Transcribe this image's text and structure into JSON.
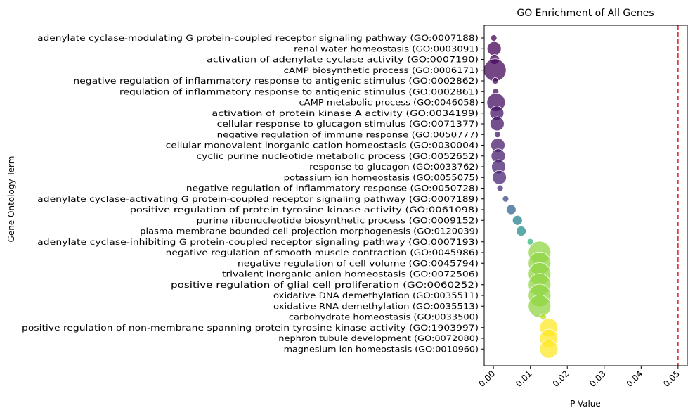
{
  "chart_data": {
    "type": "scatter",
    "title": "GO Enrichment of All Genes",
    "xlabel": "P-Value",
    "ylabel": "Gene Ontology Term",
    "xlim": [
      -0.0025,
      0.0525
    ],
    "xticks": [
      "0.00",
      "0.01",
      "0.02",
      "0.03",
      "0.04",
      "0.05"
    ],
    "xtick_values": [
      0,
      0.01,
      0.02,
      0.03,
      0.04,
      0.05
    ],
    "threshold": 0.05,
    "threshold_color": "#e41a1c",
    "colormap": "viridis",
    "grid": false,
    "points": [
      {
        "term": "adenylate cyclase-modulating G protein-coupled receptor signaling pathway (GO:0007188)",
        "p": 0.0001,
        "size": 1
      },
      {
        "term": "renal water homeostasis (GO:0003091)",
        "p": 0.0002,
        "size": 3
      },
      {
        "term": "activation of adenylate cyclase activity (GO:0007190)",
        "p": 0.0003,
        "size": 2
      },
      {
        "term": "cAMP biosynthetic process (GO:0006171)",
        "p": 0.0004,
        "size": 5
      },
      {
        "term": "negative regulation of inflammatory response to antigenic stimulus (GO:0002862)",
        "p": 0.0005,
        "size": 1
      },
      {
        "term": "regulation of inflammatory response to antigenic stimulus (GO:0002861)",
        "p": 0.0006,
        "size": 1
      },
      {
        "term": "cAMP metabolic process (GO:0046058)",
        "p": 0.0007,
        "size": 4
      },
      {
        "term": "activation of protein kinase A activity (GO:0034199)",
        "p": 0.0009,
        "size": 3
      },
      {
        "term": "cellular response to glucagon stimulus (GO:0071377)",
        "p": 0.001,
        "size": 3
      },
      {
        "term": "negative regulation of immune response (GO:0050777)",
        "p": 0.0011,
        "size": 1
      },
      {
        "term": "cellular monovalent inorganic cation homeostasis (GO:0030004)",
        "p": 0.0012,
        "size": 3
      },
      {
        "term": "cyclic purine nucleotide metabolic process (GO:0052652)",
        "p": 0.0013,
        "size": 3
      },
      {
        "term": "response to glucagon (GO:0033762)",
        "p": 0.0014,
        "size": 3
      },
      {
        "term": "potassium ion homeostasis (GO:0055075)",
        "p": 0.0016,
        "size": 3
      },
      {
        "term": "negative regulation of inflammatory response (GO:0050728)",
        "p": 0.0018,
        "size": 1
      },
      {
        "term": "adenylate cyclase-activating G protein-coupled receptor signaling pathway (GO:0007189)",
        "p": 0.0033,
        "size": 1
      },
      {
        "term": "positive regulation of protein tyrosine kinase activity (GO:0061098)",
        "p": 0.0048,
        "size": 2
      },
      {
        "term": "purine ribonucleotide biosynthetic process (GO:0009152)",
        "p": 0.0065,
        "size": 2
      },
      {
        "term": "plasma membrane bounded cell projection morphogenesis (GO:0120039)",
        "p": 0.0075,
        "size": 2
      },
      {
        "term": "adenylate cyclase-inhibiting G protein-coupled receptor signaling pathway (GO:0007193)",
        "p": 0.01,
        "size": 1
      },
      {
        "term": "negative regulation of smooth muscle contraction (GO:0045986)",
        "p": 0.0125,
        "size": 5
      },
      {
        "term": "negative regulation of cell volume (GO:0045794)",
        "p": 0.0125,
        "size": 5
      },
      {
        "term": "trivalent inorganic anion homeostasis (GO:0072506)",
        "p": 0.0125,
        "size": 5
      },
      {
        "term": "positive regulation of glial cell proliferation (GO:0060252)",
        "p": 0.0125,
        "size": 5
      },
      {
        "term": "oxidative DNA demethylation (GO:0035511)",
        "p": 0.0125,
        "size": 5
      },
      {
        "term": "oxidative RNA demethylation (GO:0035513)",
        "p": 0.0125,
        "size": 5
      },
      {
        "term": "carbohydrate homeostasis (GO:0033500)",
        "p": 0.0135,
        "size": 1
      },
      {
        "term": "positive regulation of non-membrane spanning protein tyrosine kinase activity (GO:1903997)",
        "p": 0.015,
        "size": 4
      },
      {
        "term": "nephron tubule development (GO:0072080)",
        "p": 0.015,
        "size": 4
      },
      {
        "term": "magnesium ion homeostasis (GO:0010960)",
        "p": 0.015,
        "size": 4
      }
    ]
  }
}
